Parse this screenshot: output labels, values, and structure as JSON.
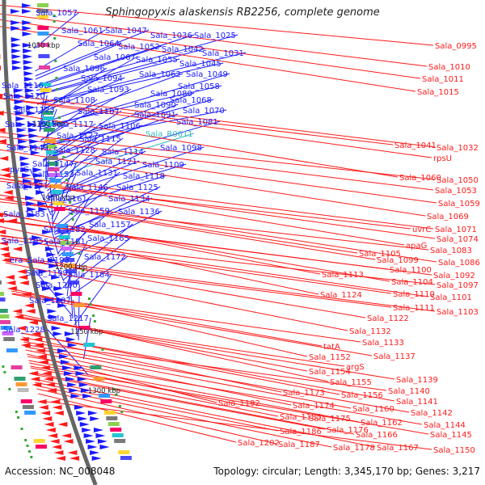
{
  "title": "Sphingopyxis alaskensis RB2256, complete genome",
  "accession": "Accession: NC_008048",
  "summary": "Topology: circular; Length: 3,345,170 bp; Genes: 3,217",
  "colors": {
    "forward": "#1a1aff",
    "reverse": "#ff1a1a",
    "rna": "#33bbbb",
    "gc": "#33aa33"
  },
  "ticks": [
    "1050 kbp",
    "1100 kbp",
    "1150 kbp",
    "1200 kbp",
    "1250 kbp",
    "1300 kbp"
  ],
  "left_labels": [
    {
      "t": "Sala_1057",
      "c": "b"
    },
    {
      "t": "Sala_1061",
      "c": "b"
    },
    {
      "t": "Sala_1047",
      "c": "b"
    },
    {
      "t": "Sala_1036",
      "c": "b"
    },
    {
      "t": "Sala_1025",
      "c": "b"
    },
    {
      "t": "Sala_1064",
      "c": "b"
    },
    {
      "t": "Sala_1052",
      "c": "b"
    },
    {
      "t": "Sala_1042",
      "c": "b"
    },
    {
      "t": "Sala_1031",
      "c": "b"
    },
    {
      "t": "Sala_1067",
      "c": "b"
    },
    {
      "t": "Sala_1055",
      "c": "b"
    },
    {
      "t": "Sala_1045",
      "c": "b"
    },
    {
      "t": "Sala_1096",
      "c": "b"
    },
    {
      "t": "Sala_1062",
      "c": "b"
    },
    {
      "t": "Sala_1049",
      "c": "b"
    },
    {
      "t": "Sala_1094",
      "c": "b"
    },
    {
      "t": "Sala_1058",
      "c": "b"
    },
    {
      "t": "Sala_1116",
      "c": "b"
    },
    {
      "t": "Sala_1093",
      "c": "b"
    },
    {
      "t": "Sala_1080",
      "c": "b"
    },
    {
      "t": "Sala_1120",
      "c": "b"
    },
    {
      "t": "Sala_1108",
      "c": "b"
    },
    {
      "t": "Sala_1068",
      "c": "b"
    },
    {
      "t": "Sala_1107",
      "c": "b"
    },
    {
      "t": "Sala_1090",
      "c": "b"
    },
    {
      "t": "Sala_1070",
      "c": "b"
    },
    {
      "t": "Sala_1123",
      "c": "b"
    },
    {
      "t": "Sala_1091",
      "c": "b"
    },
    {
      "t": "Sala_1081",
      "c": "b"
    },
    {
      "t": "Sala_1135",
      "c": "b"
    },
    {
      "t": "Sala_1117",
      "c": "b"
    },
    {
      "t": "Sala_1106",
      "c": "b"
    },
    {
      "t": "Sala_R0011",
      "c": "c"
    },
    {
      "t": "Sala_1127",
      "c": "b"
    },
    {
      "t": "Sala_1115",
      "c": "b"
    },
    {
      "t": "Sala_1149",
      "c": "b"
    },
    {
      "t": "Sala_1128",
      "c": "b"
    },
    {
      "t": "Sala_1114",
      "c": "b"
    },
    {
      "t": "Sala_1098",
      "c": "b"
    },
    {
      "t": "Sala_1147",
      "c": "b"
    },
    {
      "t": "Sala_1121",
      "c": "b"
    },
    {
      "t": "Sala_1109",
      "c": "b"
    },
    {
      "t": "pyrG",
      "c": "b"
    },
    {
      "t": "Sala_1153",
      "c": "b"
    },
    {
      "t": "Sala_1131",
      "c": "b"
    },
    {
      "t": "Sala_1118",
      "c": "b"
    },
    {
      "t": "Sala_1171",
      "c": "b"
    },
    {
      "t": "Sala_1146",
      "c": "b"
    },
    {
      "t": "Sala_1125",
      "c": "b"
    },
    {
      "t": "Sala_1161",
      "c": "b"
    },
    {
      "t": "Sala_1134",
      "c": "b"
    },
    {
      "t": "Sala_1183",
      "c": "b"
    },
    {
      "t": "Sala_1159",
      "c": "b"
    },
    {
      "t": "Sala_1136",
      "c": "b"
    },
    {
      "t": "Sala_1157",
      "c": "b"
    },
    {
      "t": "Sala_1182",
      "c": "b"
    },
    {
      "t": "Sala_1195",
      "c": "b"
    },
    {
      "t": "Sala_1181",
      "c": "b"
    },
    {
      "t": "Sala_1165",
      "c": "b"
    },
    {
      "t": "era",
      "c": "b"
    },
    {
      "t": "Sala_1193",
      "c": "b"
    },
    {
      "t": "Sala_1172",
      "c": "b"
    },
    {
      "t": "Sala_1199",
      "c": "b"
    },
    {
      "t": "Sala_1184",
      "c": "b"
    },
    {
      "t": "Sala_1200",
      "c": "b"
    },
    {
      "t": "Sala_1207",
      "c": "b"
    },
    {
      "t": "Sala_1217",
      "c": "b"
    },
    {
      "t": "Sala_1228",
      "c": "b"
    }
  ],
  "right_labels": [
    "Sala_0995",
    "Sala_1010",
    "Sala_1011",
    "Sala_1015",
    "Sala_1041",
    "Sala_1032",
    "rpsU",
    "Sala_1060",
    "Sala_1050",
    "Sala_1053",
    "Sala_1059",
    "Sala_1069",
    "uvrC",
    "Sala_1071",
    "Sala_1074",
    "apaG",
    "Sala_1083",
    "Sala_1105",
    "Sala_1099",
    "Sala_1086",
    "Sala_1100",
    "Sala_1092",
    "Sala_1113",
    "Sala_1104",
    "Sala_1097",
    "Sala_1110",
    "Sala_1101",
    "Sala_1124",
    "Sala_1111",
    "Sala_1103",
    "Sala_1122",
    "Sala_1132",
    "Sala_1133",
    "tatA",
    "Sala_1137",
    "Sala_1152",
    "argS",
    "Sala_1154",
    "Sala_1139",
    "Sala_1155",
    "Sala_1140",
    "Sala_1173",
    "Sala_1156",
    "Sala_1141",
    "Sala_1192",
    "Sala_1174",
    "Sala_1160",
    "Sala_1142",
    "Sala_1185",
    "Sala_1175",
    "Sala_1162",
    "Sala_1144",
    "Sala_1186",
    "Sala_1176",
    "Sala_1166",
    "Sala_1145",
    "Sala_1202",
    "Sala_1187",
    "Sala_1178",
    "Sala_1167",
    "Sala_1150"
  ]
}
